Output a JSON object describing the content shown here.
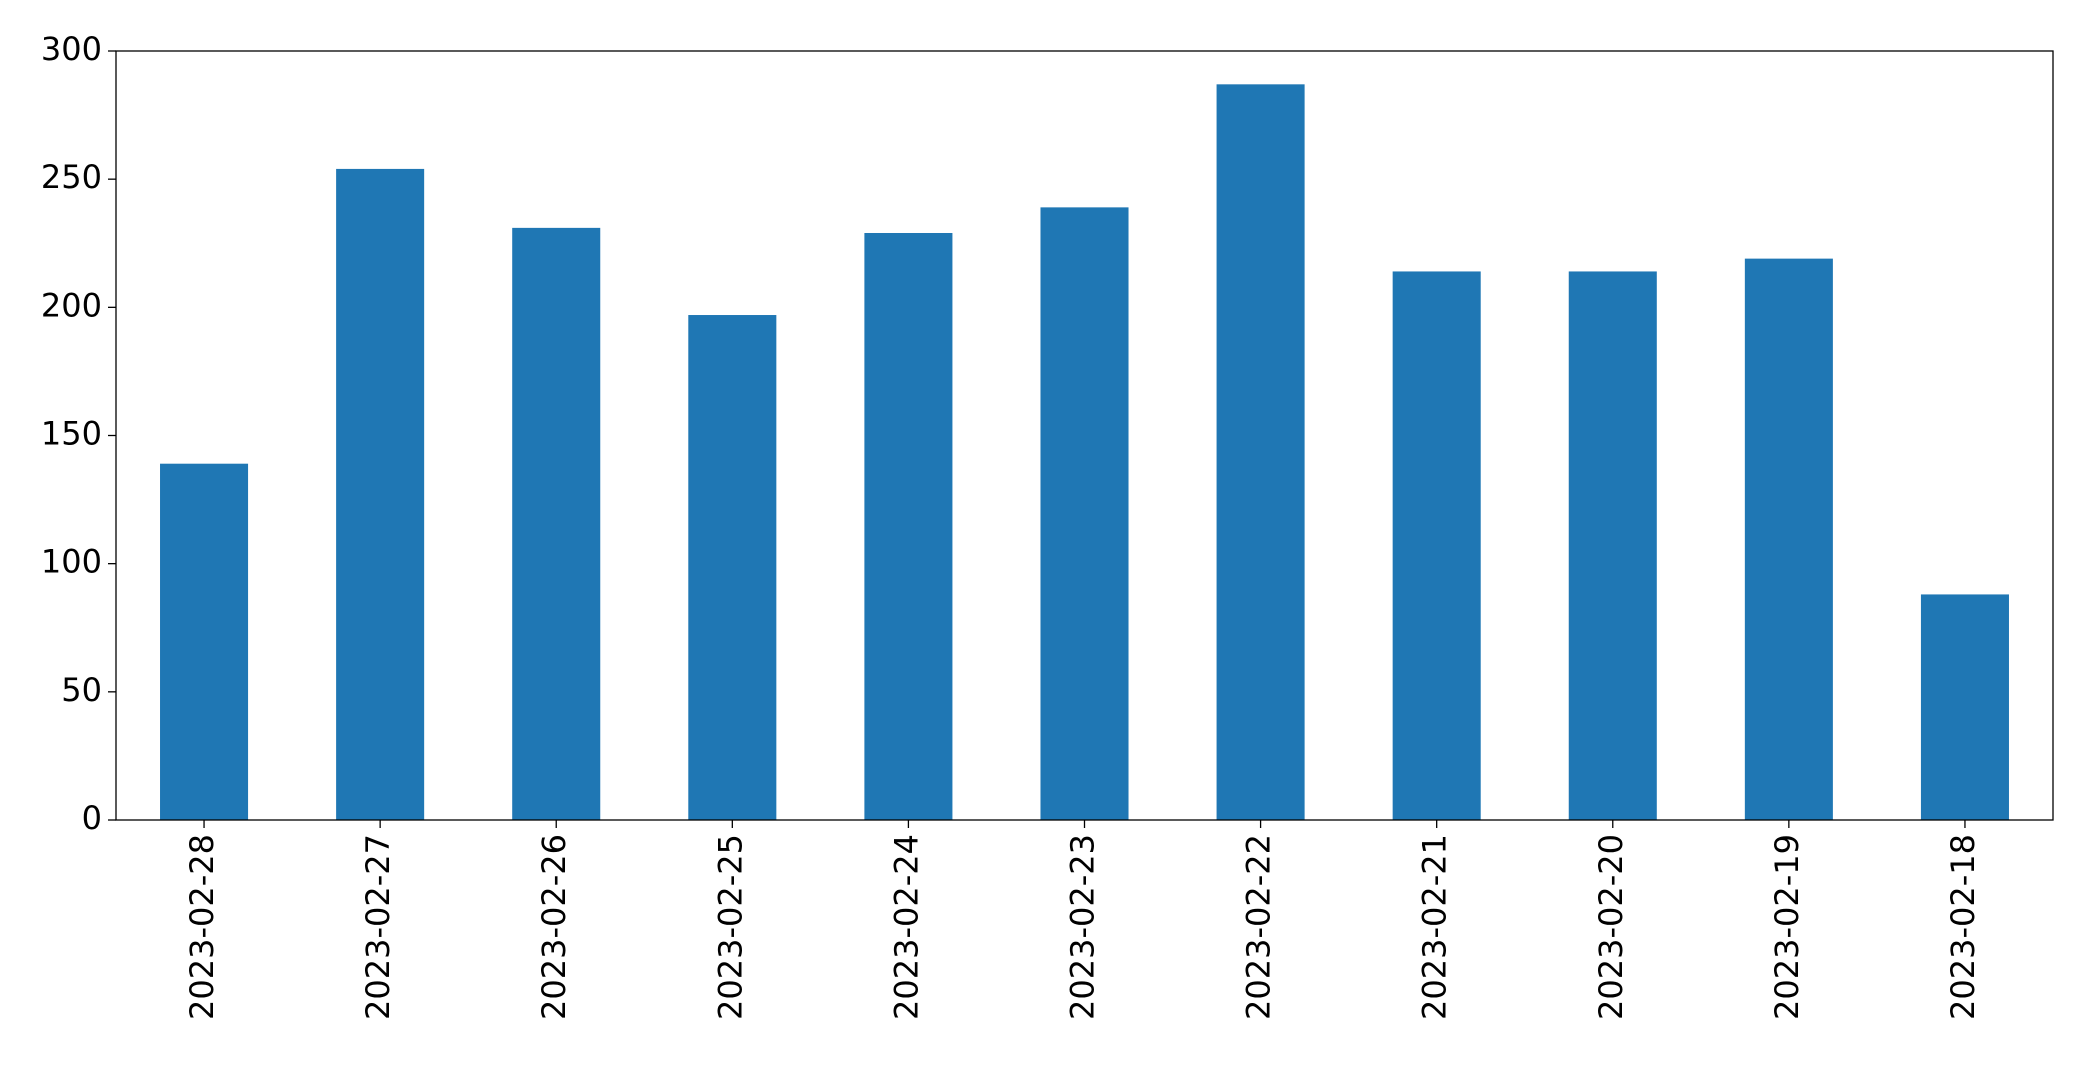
{
  "chart_data": {
    "type": "bar",
    "categories": [
      "2023-02-28",
      "2023-02-27",
      "2023-02-26",
      "2023-02-25",
      "2023-02-24",
      "2023-02-23",
      "2023-02-22",
      "2023-02-21",
      "2023-02-20",
      "2023-02-19",
      "2023-02-18"
    ],
    "values": [
      139,
      254,
      231,
      197,
      229,
      239,
      287,
      214,
      214,
      219,
      88
    ],
    "color": "#1f77b4",
    "ylim": [
      0,
      300
    ],
    "yticks": [
      0,
      50,
      100,
      150,
      200,
      250,
      300
    ],
    "grid": false
  }
}
